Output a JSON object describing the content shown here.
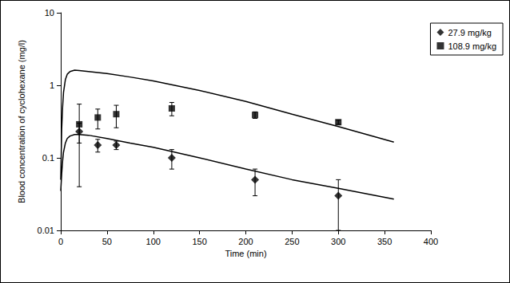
{
  "chart_data": {
    "type": "scatter",
    "x_label": "Time (min)",
    "y_label": "Blood concentration of cyclohexane (mg/l)",
    "log": "y",
    "grid": false,
    "legend": "top-right",
    "xlim": [
      0,
      400
    ],
    "xticks": [
      0,
      50,
      100,
      150,
      200,
      250,
      300,
      350,
      400
    ],
    "ylim": [
      0.01,
      10
    ],
    "yticks": [
      0.01,
      0.1,
      1,
      10
    ],
    "series": [
      {
        "name": "27.9 mg/kg",
        "color": "#000000",
        "marker": "diamond",
        "x": [
          20,
          40,
          60,
          120,
          210,
          300
        ],
        "values": [
          0.23,
          0.15,
          0.15,
          0.1,
          0.05,
          0.03
        ],
        "error_low": [
          0.16,
          0.12,
          0.13,
          0.07,
          0.03,
          0.01
        ],
        "error_high": [
          0.3,
          0.18,
          0.17,
          0.13,
          0.07,
          0.05
        ]
      },
      {
        "name": "108.9 mg/kg",
        "color": "#000000",
        "marker": "square",
        "x": [
          20,
          40,
          60,
          120,
          210,
          300
        ],
        "values": [
          0.29,
          0.36,
          0.4,
          0.48,
          0.39,
          0.31
        ],
        "error_low": [
          0.04,
          0.25,
          0.26,
          0.38,
          0.35,
          0.29
        ],
        "error_high": [
          0.55,
          0.47,
          0.53,
          0.58,
          0.43,
          0.33
        ]
      }
    ],
    "model_curves": [
      {
        "type": "line",
        "color": "#000000",
        "line_style": "solid",
        "x": [
          0,
          1,
          2,
          3,
          5,
          7,
          10,
          15,
          20,
          30,
          50,
          75,
          100,
          150,
          200,
          250,
          300,
          360
        ],
        "values": [
          0.035,
          0.06,
          0.09,
          0.12,
          0.16,
          0.185,
          0.2,
          0.21,
          0.21,
          0.205,
          0.185,
          0.16,
          0.14,
          0.1,
          0.07,
          0.05,
          0.038,
          0.027
        ]
      },
      {
        "type": "line",
        "color": "#000000",
        "line_style": "solid",
        "x": [
          0,
          1,
          2,
          3,
          5,
          7,
          10,
          15,
          20,
          30,
          50,
          75,
          100,
          150,
          200,
          250,
          300,
          360
        ],
        "values": [
          0.05,
          0.25,
          0.5,
          0.8,
          1.2,
          1.42,
          1.55,
          1.62,
          1.6,
          1.55,
          1.45,
          1.3,
          1.15,
          0.85,
          0.6,
          0.4,
          0.27,
          0.165
        ]
      }
    ]
  }
}
